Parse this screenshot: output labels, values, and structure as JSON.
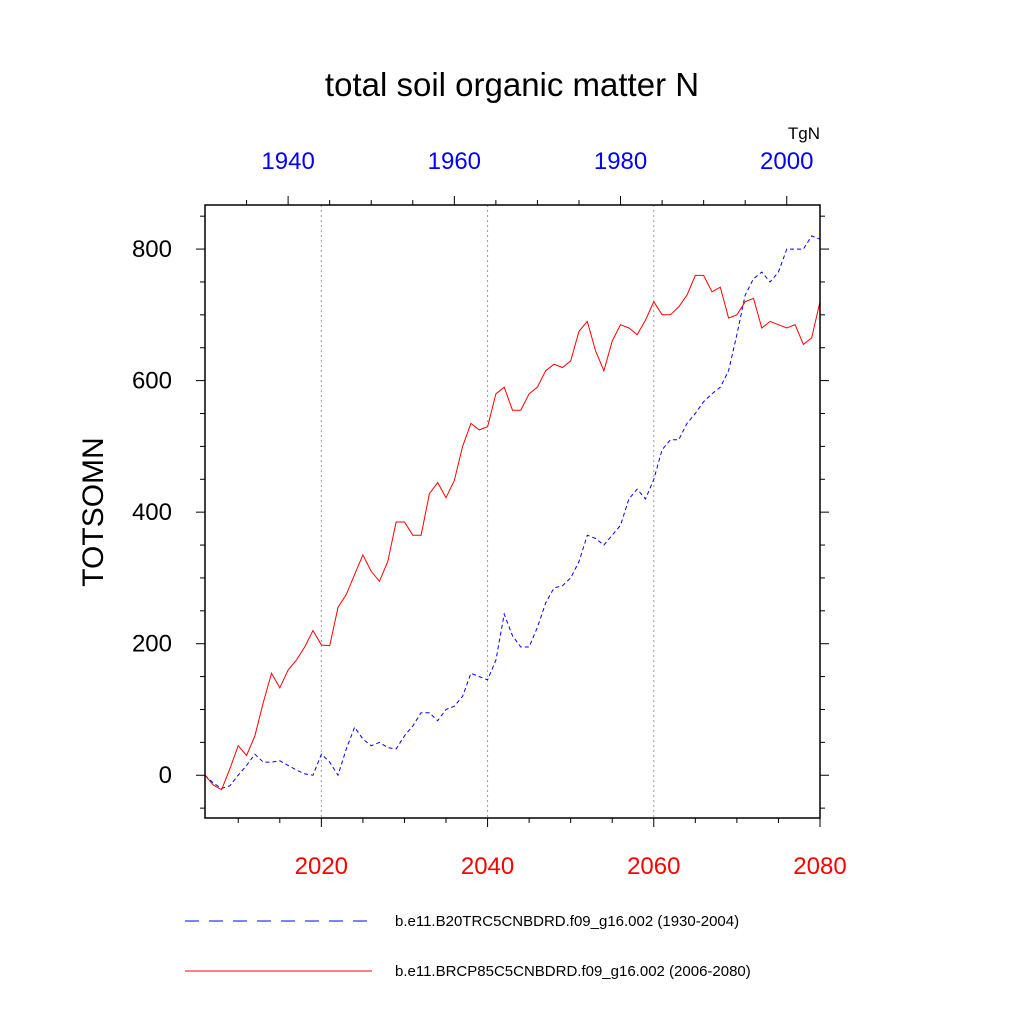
{
  "chart_data": {
    "type": "line",
    "title": "total soil organic matter N",
    "ylabel": "TOTSOMN",
    "units": "TgN",
    "ylim": [
      -65,
      867
    ],
    "y_ticks": [
      0,
      200,
      400,
      600,
      800
    ],
    "bottom_axis": {
      "range": [
        2006,
        2080
      ],
      "ticks": [
        2020,
        2040,
        2060,
        2080
      ],
      "color": "#ff0000"
    },
    "top_axis": {
      "range": [
        1930,
        2004
      ],
      "ticks": [
        1940,
        1960,
        1980,
        2000
      ],
      "color": "#0000ff"
    },
    "grid": {
      "x_dotted_at": [
        2020,
        2040,
        2060
      ]
    },
    "legend_position": "bottom",
    "series": [
      {
        "name": "b.e11.B20TRC5CNBDRD.f09_g16.002 (1930-2004)",
        "axis": "top",
        "color": "#0000ff",
        "style": "dashed",
        "x": [
          1930,
          1931,
          1932,
          1933,
          1934,
          1935,
          1936,
          1937,
          1938,
          1939,
          1940,
          1941,
          1942,
          1943,
          1944,
          1945,
          1946,
          1947,
          1948,
          1949,
          1950,
          1951,
          1952,
          1953,
          1954,
          1955,
          1956,
          1957,
          1958,
          1959,
          1960,
          1961,
          1962,
          1963,
          1964,
          1965,
          1966,
          1967,
          1968,
          1969,
          1970,
          1971,
          1972,
          1973,
          1974,
          1975,
          1976,
          1977,
          1978,
          1979,
          1980,
          1981,
          1982,
          1983,
          1984,
          1985,
          1986,
          1987,
          1988,
          1989,
          1990,
          1991,
          1992,
          1993,
          1994,
          1995,
          1996,
          1997,
          1998,
          1999,
          2000,
          2001,
          2002,
          2003,
          2004
        ],
        "values": [
          0,
          -12,
          -20,
          -16,
          0,
          15,
          32,
          20,
          20,
          22,
          15,
          8,
          2,
          0,
          32,
          20,
          0,
          40,
          73,
          55,
          45,
          50,
          42,
          40,
          60,
          75,
          95,
          95,
          83,
          100,
          105,
          120,
          155,
          150,
          145,
          175,
          245,
          212,
          195,
          195,
          225,
          262,
          285,
          288,
          300,
          325,
          365,
          360,
          350,
          365,
          380,
          420,
          435,
          420,
          450,
          495,
          510,
          510,
          535,
          550,
          568,
          580,
          590,
          615,
          670,
          730,
          755,
          765,
          750,
          765,
          800,
          800,
          800,
          820,
          815
        ]
      },
      {
        "name": "b.e11.BRCP85C5CNBDRD.f09_g16.002 (2006-2080)",
        "axis": "bottom",
        "color": "#ff0000",
        "style": "solid",
        "x": [
          2006,
          2007,
          2008,
          2009,
          2010,
          2011,
          2012,
          2013,
          2014,
          2015,
          2016,
          2017,
          2018,
          2019,
          2020,
          2021,
          2022,
          2023,
          2024,
          2025,
          2026,
          2027,
          2028,
          2029,
          2030,
          2031,
          2032,
          2033,
          2034,
          2035,
          2036,
          2037,
          2038,
          2039,
          2040,
          2041,
          2042,
          2043,
          2044,
          2045,
          2046,
          2047,
          2048,
          2049,
          2050,
          2051,
          2052,
          2053,
          2054,
          2055,
          2056,
          2057,
          2058,
          2059,
          2060,
          2061,
          2062,
          2063,
          2064,
          2065,
          2066,
          2067,
          2068,
          2069,
          2070,
          2071,
          2072,
          2073,
          2074,
          2075,
          2076,
          2077,
          2078,
          2079,
          2080
        ],
        "values": [
          0,
          -15,
          -22,
          10,
          45,
          30,
          60,
          110,
          155,
          133,
          160,
          175,
          195,
          220,
          198,
          197,
          255,
          275,
          305,
          335,
          310,
          295,
          325,
          385,
          385,
          365,
          365,
          428,
          445,
          422,
          448,
          500,
          535,
          525,
          530,
          580,
          590,
          555,
          555,
          580,
          590,
          615,
          625,
          620,
          630,
          675,
          690,
          645,
          615,
          660,
          685,
          680,
          670,
          692,
          720,
          700,
          700,
          712,
          730,
          760,
          760,
          735,
          742,
          695,
          700,
          720,
          725,
          680,
          690,
          685,
          680,
          685,
          655,
          665,
          720
        ]
      }
    ]
  }
}
